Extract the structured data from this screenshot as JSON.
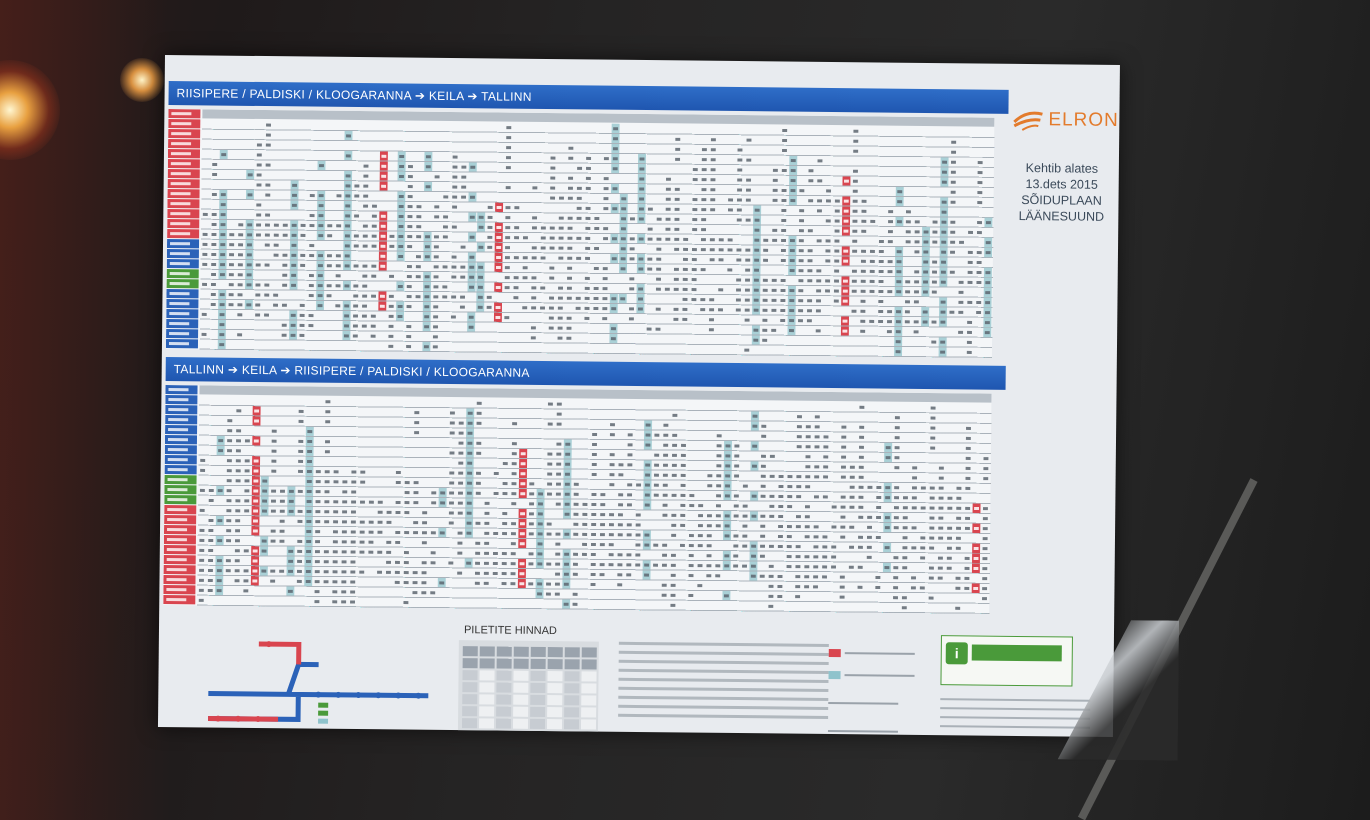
{
  "poster": {
    "route_west": "RIISIPERE / PALDISKI / KLOOGARANNA ➔ KEILA ➔ TALLINN",
    "route_east": "TALLINN ➔ KEILA ➔ RIISIPERE / PALDISKI / KLOOGARANNA",
    "brand": "ELRON",
    "valid_from_label": "Kehtib alates",
    "valid_from_date": "13.dets 2015",
    "schedule_title": "SÕIDUPLAAN",
    "direction": "LÄÄNESUUND",
    "fares_title": "PILETITE HINNAD"
  },
  "colors": {
    "header_blue": "#1f56b0",
    "accent_red": "#d9454f",
    "accent_teal": "#8fc3cc",
    "brand_orange": "#e37b2c",
    "help_green": "#4a9a3a"
  },
  "icons": [
    "elron-logo-icon",
    "info-icon",
    "route-map-icon"
  ]
}
